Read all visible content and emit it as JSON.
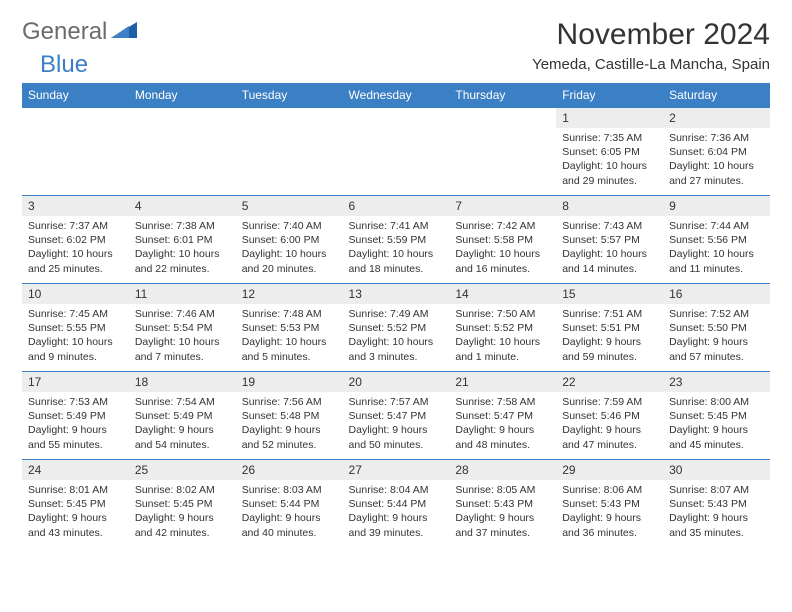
{
  "brand": {
    "text1": "General",
    "text2": "Blue"
  },
  "title": "November 2024",
  "location": "Yemeda, Castille-La Mancha, Spain",
  "colors": {
    "header_bg": "#3b7fc4",
    "header_text": "#ffffff",
    "daynum_bg": "#ededed",
    "border": "#3b7fc4",
    "text": "#333333",
    "logo_gray": "#6b6b6b",
    "logo_blue": "#3b7fc4",
    "page_bg": "#ffffff"
  },
  "fonts": {
    "title_size": 30,
    "location_size": 15,
    "header_size": 12,
    "daynum_size": 12,
    "content_size": 10.5
  },
  "dayNames": [
    "Sunday",
    "Monday",
    "Tuesday",
    "Wednesday",
    "Thursday",
    "Friday",
    "Saturday"
  ],
  "weeks": [
    [
      null,
      null,
      null,
      null,
      null,
      {
        "n": "1",
        "sr": "7:35 AM",
        "ss": "6:05 PM",
        "dl": "10 hours and 29 minutes."
      },
      {
        "n": "2",
        "sr": "7:36 AM",
        "ss": "6:04 PM",
        "dl": "10 hours and 27 minutes."
      }
    ],
    [
      {
        "n": "3",
        "sr": "7:37 AM",
        "ss": "6:02 PM",
        "dl": "10 hours and 25 minutes."
      },
      {
        "n": "4",
        "sr": "7:38 AM",
        "ss": "6:01 PM",
        "dl": "10 hours and 22 minutes."
      },
      {
        "n": "5",
        "sr": "7:40 AM",
        "ss": "6:00 PM",
        "dl": "10 hours and 20 minutes."
      },
      {
        "n": "6",
        "sr": "7:41 AM",
        "ss": "5:59 PM",
        "dl": "10 hours and 18 minutes."
      },
      {
        "n": "7",
        "sr": "7:42 AM",
        "ss": "5:58 PM",
        "dl": "10 hours and 16 minutes."
      },
      {
        "n": "8",
        "sr": "7:43 AM",
        "ss": "5:57 PM",
        "dl": "10 hours and 14 minutes."
      },
      {
        "n": "9",
        "sr": "7:44 AM",
        "ss": "5:56 PM",
        "dl": "10 hours and 11 minutes."
      }
    ],
    [
      {
        "n": "10",
        "sr": "7:45 AM",
        "ss": "5:55 PM",
        "dl": "10 hours and 9 minutes."
      },
      {
        "n": "11",
        "sr": "7:46 AM",
        "ss": "5:54 PM",
        "dl": "10 hours and 7 minutes."
      },
      {
        "n": "12",
        "sr": "7:48 AM",
        "ss": "5:53 PM",
        "dl": "10 hours and 5 minutes."
      },
      {
        "n": "13",
        "sr": "7:49 AM",
        "ss": "5:52 PM",
        "dl": "10 hours and 3 minutes."
      },
      {
        "n": "14",
        "sr": "7:50 AM",
        "ss": "5:52 PM",
        "dl": "10 hours and 1 minute."
      },
      {
        "n": "15",
        "sr": "7:51 AM",
        "ss": "5:51 PM",
        "dl": "9 hours and 59 minutes."
      },
      {
        "n": "16",
        "sr": "7:52 AM",
        "ss": "5:50 PM",
        "dl": "9 hours and 57 minutes."
      }
    ],
    [
      {
        "n": "17",
        "sr": "7:53 AM",
        "ss": "5:49 PM",
        "dl": "9 hours and 55 minutes."
      },
      {
        "n": "18",
        "sr": "7:54 AM",
        "ss": "5:49 PM",
        "dl": "9 hours and 54 minutes."
      },
      {
        "n": "19",
        "sr": "7:56 AM",
        "ss": "5:48 PM",
        "dl": "9 hours and 52 minutes."
      },
      {
        "n": "20",
        "sr": "7:57 AM",
        "ss": "5:47 PM",
        "dl": "9 hours and 50 minutes."
      },
      {
        "n": "21",
        "sr": "7:58 AM",
        "ss": "5:47 PM",
        "dl": "9 hours and 48 minutes."
      },
      {
        "n": "22",
        "sr": "7:59 AM",
        "ss": "5:46 PM",
        "dl": "9 hours and 47 minutes."
      },
      {
        "n": "23",
        "sr": "8:00 AM",
        "ss": "5:45 PM",
        "dl": "9 hours and 45 minutes."
      }
    ],
    [
      {
        "n": "24",
        "sr": "8:01 AM",
        "ss": "5:45 PM",
        "dl": "9 hours and 43 minutes."
      },
      {
        "n": "25",
        "sr": "8:02 AM",
        "ss": "5:45 PM",
        "dl": "9 hours and 42 minutes."
      },
      {
        "n": "26",
        "sr": "8:03 AM",
        "ss": "5:44 PM",
        "dl": "9 hours and 40 minutes."
      },
      {
        "n": "27",
        "sr": "8:04 AM",
        "ss": "5:44 PM",
        "dl": "9 hours and 39 minutes."
      },
      {
        "n": "28",
        "sr": "8:05 AM",
        "ss": "5:43 PM",
        "dl": "9 hours and 37 minutes."
      },
      {
        "n": "29",
        "sr": "8:06 AM",
        "ss": "5:43 PM",
        "dl": "9 hours and 36 minutes."
      },
      {
        "n": "30",
        "sr": "8:07 AM",
        "ss": "5:43 PM",
        "dl": "9 hours and 35 minutes."
      }
    ]
  ],
  "labels": {
    "sunrise": "Sunrise:",
    "sunset": "Sunset:",
    "daylight": "Daylight:"
  }
}
